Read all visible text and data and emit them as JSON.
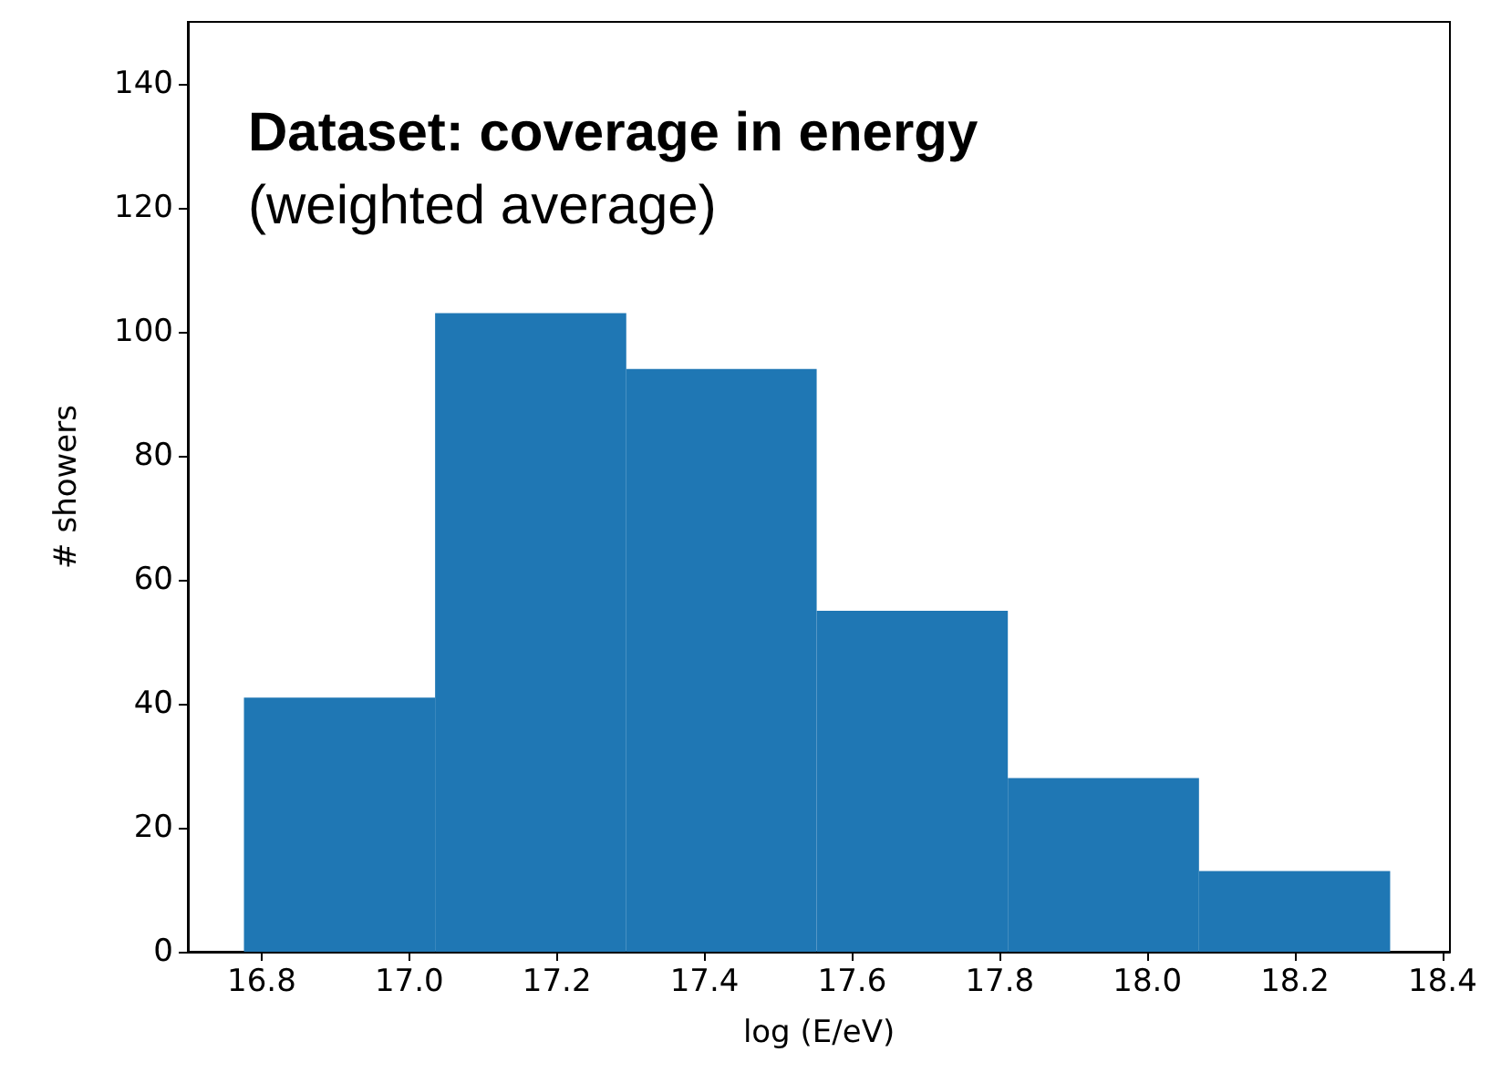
{
  "chart_data": {
    "type": "histogram",
    "title": "Dataset: coverage in energy",
    "subtitle": "(weighted average)",
    "xlabel": "log (E/eV)",
    "ylabel": "# showers",
    "bins": [
      16.776,
      17.035,
      17.294,
      17.552,
      17.811,
      18.07,
      18.329
    ],
    "values": [
      41,
      103,
      94,
      55,
      28,
      13
    ],
    "color": "#1f77b4",
    "xlim": [
      16.7,
      18.41
    ],
    "xticks": [
      {
        "value": 16.8,
        "label": "16.8"
      },
      {
        "value": 17.0,
        "label": "17.0"
      },
      {
        "value": 17.2,
        "label": "17.2"
      },
      {
        "value": 17.4,
        "label": "17.4"
      },
      {
        "value": 17.6,
        "label": "17.6"
      },
      {
        "value": 17.8,
        "label": "17.8"
      },
      {
        "value": 18.0,
        "label": "18.0"
      },
      {
        "value": 18.2,
        "label": "18.2"
      },
      {
        "value": 18.4,
        "label": "18.4"
      }
    ],
    "ylim": [
      0,
      150
    ],
    "yticks": [
      0,
      20,
      40,
      60,
      80,
      100,
      120,
      140
    ],
    "grid": false
  }
}
